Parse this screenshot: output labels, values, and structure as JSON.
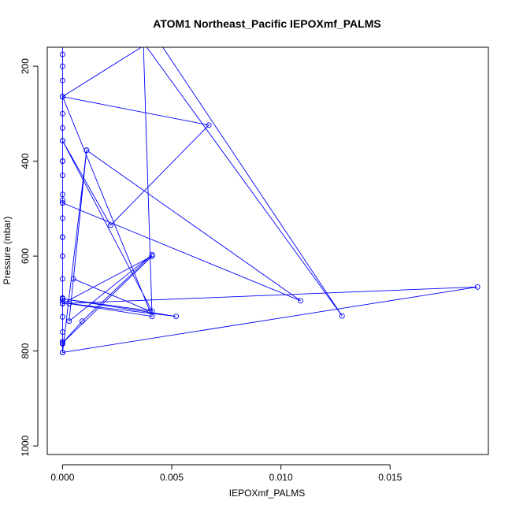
{
  "chart_data": {
    "type": "line",
    "title": "ATOM1 Northeast_Pacific IEPOXmf_PALMS",
    "xlabel": "IEPOXmf_PALMS",
    "ylabel": "Pressure (mbar)",
    "xlim": [
      -0.0007,
      0.0195
    ],
    "ylim": [
      1018,
      160
    ],
    "y_reversed": true,
    "x_ticks": [
      0.0,
      0.005,
      0.01,
      0.015
    ],
    "x_tick_labels": [
      "0.000",
      "0.005",
      "0.010",
      "0.015"
    ],
    "y_ticks": [
      200,
      400,
      600,
      800,
      1000
    ],
    "y_tick_labels": [
      "200",
      "400",
      "600",
      "800",
      "1000"
    ],
    "grid": false,
    "series_color": "#0000ff",
    "series": [
      {
        "values": [
          [
            0.0,
            150
          ],
          [
            0.0,
            175
          ],
          [
            0.0,
            200
          ],
          [
            0.0,
            230
          ],
          [
            0.0,
            264
          ],
          [
            0.0,
            300
          ],
          [
            0.0,
            330
          ],
          [
            0.0,
            357
          ],
          [
            0.0,
            400
          ],
          [
            0.0,
            430
          ],
          [
            0.0,
            470
          ],
          [
            0.0,
            482
          ],
          [
            0.0,
            488
          ],
          [
            0.0,
            520
          ],
          [
            0.0,
            560
          ],
          [
            0.0,
            600
          ],
          [
            0.0,
            648
          ],
          [
            0.0,
            688
          ],
          [
            0.0,
            694
          ],
          [
            0.0,
            700
          ],
          [
            0.0,
            728
          ],
          [
            0.0,
            760
          ],
          [
            0.0,
            785
          ],
          [
            0.0,
            803
          ],
          [
            0.0,
            780
          ],
          [
            0.0,
            700
          ],
          [
            0.0,
            560
          ],
          [
            0.0,
            400
          ],
          [
            0.0,
            264
          ],
          [
            0.0043,
            140
          ],
          [
            0.0128,
            726
          ],
          [
            0.0037,
            150
          ],
          [
            0.0041,
            727
          ],
          [
            0.0003,
            700
          ],
          [
            0.0052,
            727
          ],
          [
            0.0,
            690
          ],
          [
            0.0041,
            716
          ],
          [
            0.0,
            357
          ],
          [
            0.0022,
            535
          ],
          [
            0.0067,
            324
          ],
          [
            0.0,
            264
          ],
          [
            0.004,
            716
          ],
          [
            0.0005,
            648
          ],
          [
            0.0011,
            377
          ],
          [
            0.0003,
            737
          ],
          [
            0.0041,
            597
          ],
          [
            0.0009,
            737
          ],
          [
            0.0,
            783
          ],
          [
            0.0041,
            600
          ],
          [
            0.0,
            700
          ],
          [
            0.019,
            665
          ],
          [
            0.0,
            803
          ],
          [
            0.0011,
            377
          ],
          [
            0.0109,
            694
          ],
          [
            0.0,
            488
          ]
        ]
      }
    ]
  }
}
